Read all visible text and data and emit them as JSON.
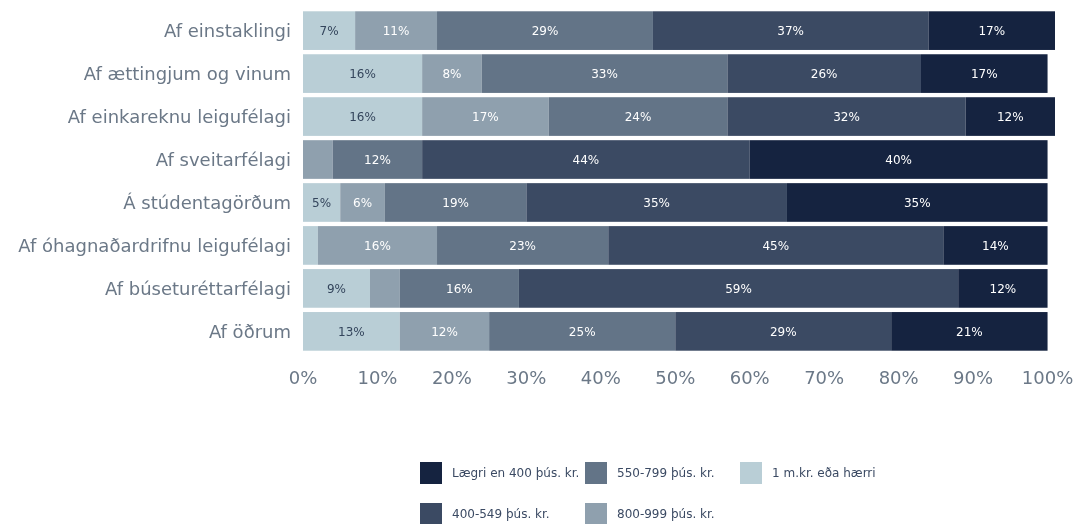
{
  "chart_data": {
    "type": "bar",
    "orientation": "horizontal",
    "stacked": true,
    "categories": [
      "Af einstaklingi",
      "Af ættingjum og vinum",
      "Af einkareknu leigufélagi",
      "Af sveitarfélagi",
      "Á stúdentagörðum",
      "Af óhagnaðardrifnu leigufélagi",
      "Af búseturéttarfélagi",
      "Af öðrum"
    ],
    "series": [
      {
        "name": "1 m.kr. eða hærri",
        "color": "#b9ced6",
        "values": [
          7,
          16,
          16,
          null,
          5,
          2,
          9,
          13
        ],
        "value_labels": [
          "7%",
          "16%",
          "16%",
          null,
          "5%",
          null,
          "9%",
          "13%"
        ]
      },
      {
        "name": "800-999 þús. kr.",
        "color": "#8fa0ae",
        "values": [
          11,
          8,
          17,
          4,
          6,
          16,
          4,
          12
        ],
        "value_labels": [
          "11%",
          "8%",
          "17%",
          null,
          "6%",
          "16%",
          null,
          "12%"
        ]
      },
      {
        "name": "550-799 þús. kr.",
        "color": "#637487",
        "values": [
          29,
          33,
          24,
          12,
          19,
          23,
          16,
          25
        ],
        "value_labels": [
          "29%",
          "33%",
          "24%",
          "12%",
          "19%",
          "23%",
          "16%",
          "25%"
        ]
      },
      {
        "name": "400-549 þús. kr.",
        "color": "#3b4a63",
        "values": [
          37,
          26,
          32,
          44,
          35,
          45,
          59,
          29
        ],
        "value_labels": [
          "37%",
          "26%",
          "32%",
          "44%",
          "35%",
          "45%",
          "59%",
          "29%"
        ]
      },
      {
        "name": "Lægri en 400 þús. kr.",
        "color": "#152340",
        "values": [
          17,
          17,
          12,
          40,
          35,
          14,
          12,
          21
        ],
        "value_labels": [
          "17%",
          "17%",
          "12%",
          "40%",
          "35%",
          "14%",
          "12%",
          "21%"
        ]
      }
    ],
    "xlim": [
      0,
      101
    ],
    "xticks": [
      {
        "value": 0,
        "label": "0%"
      },
      {
        "value": 10,
        "label": "10%"
      },
      {
        "value": 20,
        "label": "20%"
      },
      {
        "value": 30,
        "label": "30%"
      },
      {
        "value": 40,
        "label": "40%"
      },
      {
        "value": 50,
        "label": "50%"
      },
      {
        "value": 60,
        "label": "60%"
      },
      {
        "value": 70,
        "label": "70%"
      },
      {
        "value": 80,
        "label": "80%"
      },
      {
        "value": 90,
        "label": "90%"
      },
      {
        "value": 100,
        "label": "100%"
      }
    ],
    "legend": "bottom"
  }
}
